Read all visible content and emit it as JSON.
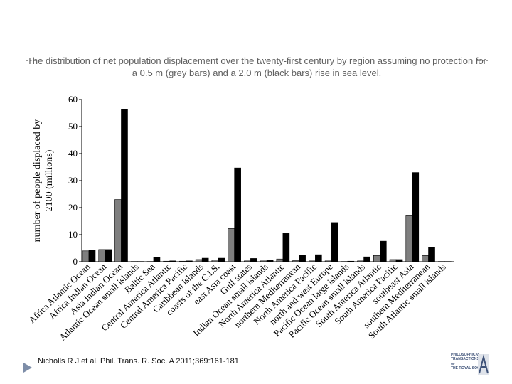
{
  "title": "The distribution of net population displacement over the twenty-first century by region assuming no protection for a 0.5 m (grey bars) and a 2.0 m (black bars) rise in sea level.",
  "citation": "Nicholls R J et al. Phil. Trans. R. Soc. A 2011;369:161-181",
  "logo": {
    "line1": "PHILOSOPHICAL",
    "line2": "TRANSACTIONS",
    "line3": "OF",
    "line4": "THE ROYAL SOCIETY",
    "mark": "A"
  },
  "colors": {
    "grey_bar": "#7f7f7f",
    "black_bar": "#000000",
    "title": "#5f5f5f"
  },
  "chart_data": {
    "type": "bar",
    "ylabel": "number of people displaced by 2100 (millions)",
    "ylim": [
      0,
      60
    ],
    "yticks": [
      0,
      10,
      20,
      30,
      40,
      50,
      60
    ],
    "grid": false,
    "categories": [
      "Africa Atlantic Ocean",
      "Africa Indian Ocean",
      "Asia Indian Ocean",
      "Atlantic Ocean small islands",
      "Baltic Sea",
      "Central America Atlantic",
      "Central America Pacific",
      "Caribbean islands",
      "coasts of the C.I.S.",
      "east Asia coast",
      "Gulf states",
      "Indian Ocean small islands",
      "North America Atlantic",
      "northern Mediterranean",
      "North America Pacific",
      "north and west Europe",
      "Pacific Ocean large islands",
      "Pacific Ocean small islands",
      "South America Atlantic",
      "South America Pacific",
      "southeast Asia",
      "southern Mediterranean",
      "South Atlantic small islands"
    ],
    "series": [
      {
        "name": "0.5 m rise",
        "color": "#7f7f7f",
        "values": [
          4.0,
          4.5,
          23.0,
          0.1,
          0.1,
          0.2,
          0.2,
          0.8,
          0.6,
          12.3,
          0.3,
          0.3,
          1.0,
          0.5,
          0.3,
          0.3,
          0.1,
          0.3,
          2.3,
          0.8,
          17.0,
          2.3,
          0.1
        ]
      },
      {
        "name": "2.0 m rise",
        "color": "#000000",
        "values": [
          4.3,
          4.5,
          56.5,
          0.1,
          1.7,
          0.3,
          0.3,
          1.3,
          1.3,
          34.7,
          1.2,
          0.5,
          10.5,
          2.3,
          2.6,
          14.5,
          0.2,
          1.8,
          7.6,
          0.8,
          33.0,
          5.3,
          0.1
        ]
      }
    ]
  }
}
